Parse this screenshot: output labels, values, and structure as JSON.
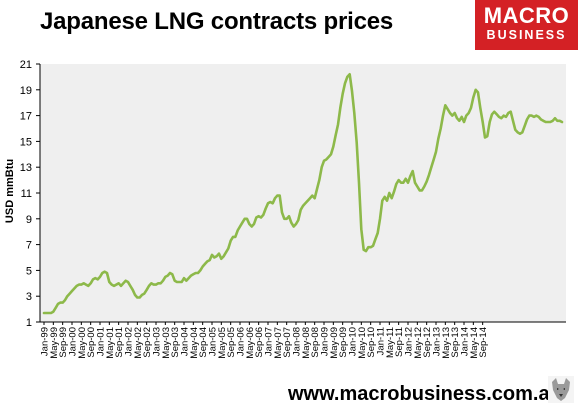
{
  "header": {
    "title": "Japanese LNG contracts prices",
    "logo_line1": "MACRO",
    "logo_line2": "BUSINESS"
  },
  "footer": {
    "url": "www.macrobusiness.com.au"
  },
  "colors": {
    "series": "#8db94a",
    "plot_bg": "#efefef",
    "brand": "#d42125"
  },
  "chart_data": {
    "type": "line",
    "title": "Japanese LNG contracts prices",
    "ylabel": "USD mmBtu",
    "xlabel": "",
    "ylim": [
      1,
      21
    ],
    "yticks": [
      1,
      3,
      5,
      7,
      9,
      11,
      13,
      15,
      17,
      19,
      21
    ],
    "grid": false,
    "legend": "none",
    "xticks": [
      "Jan-99",
      "May-99",
      "Sep-99",
      "Jan-00",
      "May-00",
      "Sep-00",
      "Jan-01",
      "May-01",
      "Sep-01",
      "Jan-02",
      "May-02",
      "Sep-02",
      "Jan-03",
      "May-03",
      "Sep-03",
      "Jan-04",
      "May-04",
      "Sep-04",
      "Jan-05",
      "May-05",
      "Sep-05",
      "Jan-06",
      "May-06",
      "Sep-06",
      "Jan-07",
      "May-07",
      "Sep-07",
      "Jan-08",
      "May-08",
      "Sep-08",
      "Jan-09",
      "May-09",
      "Sep-09",
      "Jan-10",
      "May-10",
      "Sep-10",
      "Jan-11",
      "May-11",
      "Sep-11",
      "Jan-12",
      "May-12",
      "Sep-12",
      "Jan-13",
      "May-13",
      "Sep-13",
      "Jan-14",
      "May-14",
      "Sep-14"
    ],
    "series": [
      {
        "values": [
          1.7,
          1.7,
          1.7,
          1.7,
          1.8,
          2.1,
          2.4,
          2.5,
          2.5,
          2.7,
          3.0,
          3.2,
          3.4,
          3.6,
          3.8,
          3.9,
          3.9,
          4.0,
          3.9,
          3.8,
          4.0,
          4.3,
          4.4,
          4.3,
          4.5,
          4.8,
          4.9,
          4.8,
          4.1,
          3.9,
          3.8,
          3.9,
          4.0,
          3.8,
          4.0,
          4.2,
          4.1,
          3.8,
          3.5,
          3.1,
          2.9,
          2.9,
          3.1,
          3.2,
          3.5,
          3.8,
          4.0,
          3.9,
          3.9,
          4.0,
          4.0,
          4.2,
          4.5,
          4.6,
          4.8,
          4.7,
          4.2,
          4.1,
          4.1,
          4.1,
          4.4,
          4.2,
          4.4,
          4.6,
          4.7,
          4.8,
          4.8,
          5.0,
          5.3,
          5.5,
          5.7,
          5.8,
          6.2,
          6.0,
          6.1,
          6.3,
          5.9,
          6.1,
          6.4,
          6.7,
          7.3,
          7.6,
          7.6,
          8.1,
          8.4,
          8.7,
          9.0,
          9.0,
          8.6,
          8.4,
          8.6,
          9.1,
          9.2,
          9.1,
          9.3,
          9.8,
          10.2,
          10.3,
          10.2,
          10.6,
          10.8,
          10.8,
          9.5,
          9.0,
          9.0,
          9.2,
          8.7,
          8.4,
          8.6,
          8.9,
          9.7,
          10.0,
          10.2,
          10.4,
          10.6,
          10.8,
          10.6,
          11.3,
          12.0,
          13.0,
          13.5,
          13.6,
          13.8,
          14.0,
          14.6,
          15.5,
          16.3,
          17.6,
          18.7,
          19.5,
          20.0,
          20.2,
          18.9,
          17.2,
          14.9,
          11.8,
          8.2,
          6.6,
          6.5,
          6.8,
          6.8,
          6.9,
          7.4,
          7.9,
          9.0,
          10.4,
          10.7,
          10.4,
          11.0,
          10.6,
          11.1,
          11.7,
          12.0,
          11.8,
          11.8,
          12.1,
          11.8,
          12.3,
          12.7,
          11.8,
          11.5,
          11.2,
          11.2,
          11.5,
          11.9,
          12.4,
          13.0,
          13.6,
          14.2,
          15.2,
          16.0,
          17.0,
          17.8,
          17.5,
          17.2,
          17.0,
          17.2,
          16.8,
          16.6,
          16.9,
          16.5,
          17.0,
          17.2,
          17.6,
          18.4,
          19.0,
          18.8,
          17.6,
          16.5,
          15.3,
          15.4,
          16.5,
          17.1,
          17.3,
          17.1,
          16.9,
          16.8,
          17.0,
          16.9,
          17.2,
          17.3,
          16.6,
          15.9,
          15.7,
          15.6,
          15.7,
          16.2,
          16.7,
          17.0,
          17.0,
          16.9,
          17.0,
          16.9,
          16.7,
          16.6,
          16.5,
          16.5,
          16.5,
          16.6,
          16.8,
          16.6,
          16.6,
          16.5
        ]
      }
    ]
  }
}
